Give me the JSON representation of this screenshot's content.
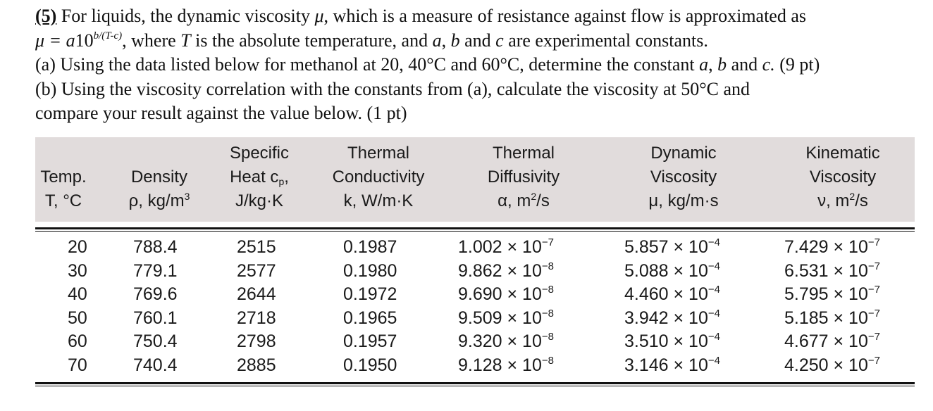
{
  "problem": {
    "number": "(5)",
    "line1_text": " For liquids, the dynamic viscosity ",
    "mu": "μ",
    "line1_end": ", which is a measure of resistance against flow is approximated as",
    "formula_lhs": "μ = a",
    "formula_base": "10",
    "formula_exponent": "b/(T-c)",
    "line2_text": ", where ",
    "T": "T",
    "line2_mid": " is the absolute temperature, and ",
    "a": "a",
    "sep1": ", ",
    "b": "b",
    "and": " and ",
    "c": "c",
    "line2_end": " are experimental constants.",
    "part_a_start": "(a) Using the data listed below for methanol at 20, 40°C and 60°C, determine the constant ",
    "part_a_a": "a",
    "part_a_sep": ", ",
    "part_a_b": "b",
    "part_a_and": " and ",
    "part_a_c": "c.",
    "part_a_pts": " (9 pt)",
    "part_b_line1": "(b) Using the viscosity correlation with the constants from (a), calculate the viscosity at 50°C and",
    "part_b_line2": "compare your result against the value below. (1 pt)"
  },
  "table": {
    "headers": [
      {
        "l1": "",
        "l2": "Temp.",
        "l3": "T, °C"
      },
      {
        "l1": "",
        "l2": "Density",
        "l3": "ρ, kg/m",
        "l3_sup": "3"
      },
      {
        "l1": "Specific",
        "l2": "Heat c",
        "l2_sub": "p",
        "l2_end": ",",
        "l3": "J/kg·K"
      },
      {
        "l1": "Thermal",
        "l2": "Conductivity",
        "l3": "k, W/m·K"
      },
      {
        "l1": "Thermal",
        "l2": "Diffusivity",
        "l3": "α, m",
        "l3_sup": "2",
        "l3_end": "/s"
      },
      {
        "l1": "Dynamic",
        "l2": "Viscosity",
        "l3": "μ, kg/m·s"
      },
      {
        "l1": "Kinematic",
        "l2": "Viscosity",
        "l3": "ν, m",
        "l3_sup": "2",
        "l3_end": "/s"
      }
    ],
    "rows": [
      {
        "t": "20",
        "rho": "788.4",
        "cp": "2515",
        "k": "0.1987",
        "alpha_m": "1.002 × 10",
        "alpha_e": "−7",
        "mu_m": "5.857 × 10",
        "mu_e": "−4",
        "nu_m": "7.429 × 10",
        "nu_e": "−7"
      },
      {
        "t": "30",
        "rho": "779.1",
        "cp": "2577",
        "k": "0.1980",
        "alpha_m": "9.862 × 10",
        "alpha_e": "−8",
        "mu_m": "5.088 × 10",
        "mu_e": "−4",
        "nu_m": "6.531 × 10",
        "nu_e": "−7"
      },
      {
        "t": "40",
        "rho": "769.6",
        "cp": "2644",
        "k": "0.1972",
        "alpha_m": "9.690 × 10",
        "alpha_e": "−8",
        "mu_m": "4.460 × 10",
        "mu_e": "−4",
        "nu_m": "5.795 × 10",
        "nu_e": "−7"
      },
      {
        "t": "50",
        "rho": "760.1",
        "cp": "2718",
        "k": "0.1965",
        "alpha_m": "9.509 × 10",
        "alpha_e": "−8",
        "mu_m": "3.942 × 10",
        "mu_e": "−4",
        "nu_m": "5.185 × 10",
        "nu_e": "−7"
      },
      {
        "t": "60",
        "rho": "750.4",
        "cp": "2798",
        "k": "0.1957",
        "alpha_m": "9.320 × 10",
        "alpha_e": "−8",
        "mu_m": "3.510 × 10",
        "mu_e": "−4",
        "nu_m": "4.677 × 10",
        "nu_e": "−7"
      },
      {
        "t": "70",
        "rho": "740.4",
        "cp": "2885",
        "k": "0.1950",
        "alpha_m": "9.128 × 10",
        "alpha_e": "−8",
        "mu_m": "3.146 × 10",
        "mu_e": "−4",
        "nu_m": "4.250 × 10",
        "nu_e": "−7"
      }
    ]
  }
}
